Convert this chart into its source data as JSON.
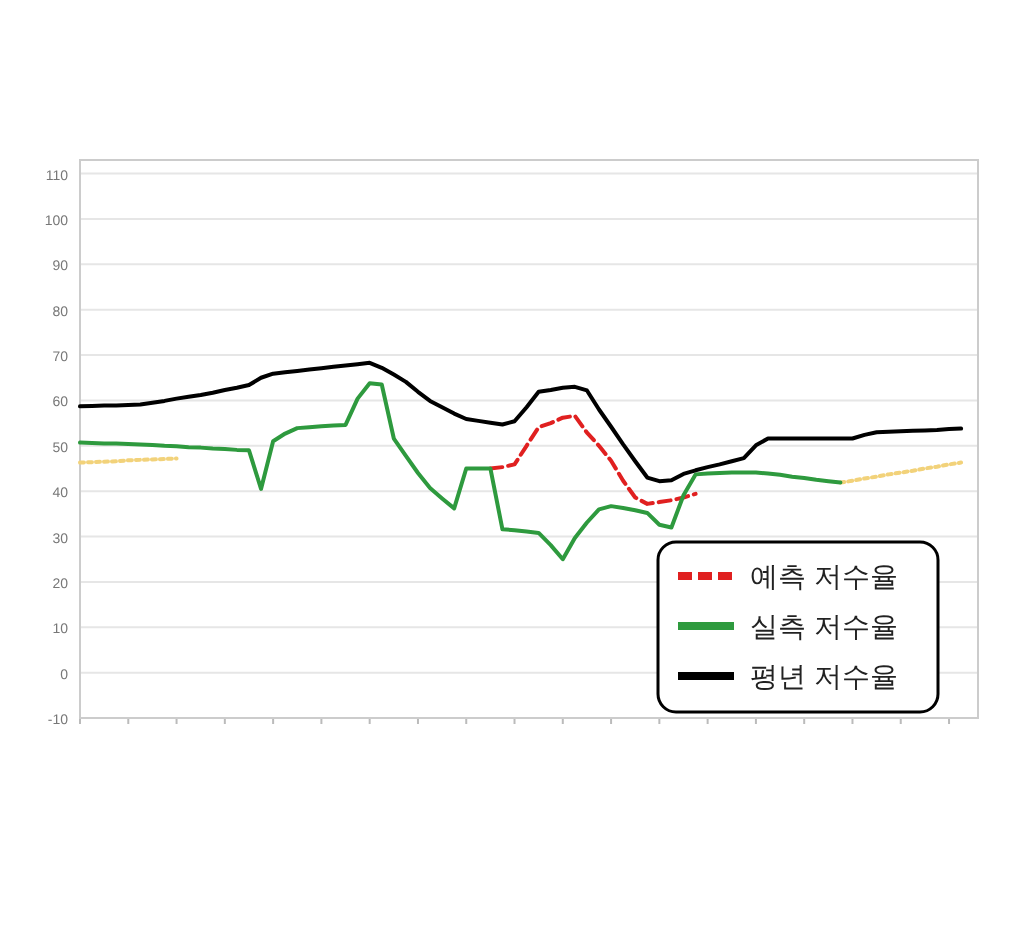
{
  "chart_data": {
    "type": "line",
    "categories": [
      null,
      null,
      null,
      null,
      null,
      null,
      null,
      null,
      null,
      null,
      null,
      null,
      null,
      null,
      null,
      null,
      null,
      null,
      null,
      null,
      null,
      null,
      null,
      null,
      null,
      null,
      null,
      null,
      null,
      null,
      null,
      null,
      null,
      null,
      null,
      null,
      null,
      null,
      null,
      null,
      null,
      null,
      null,
      null,
      null,
      null,
      null,
      null,
      null,
      null,
      null,
      null,
      null,
      null,
      null,
      null,
      null,
      null,
      null,
      null,
      null,
      null,
      null,
      null,
      null,
      null,
      null,
      null,
      null,
      null,
      null,
      null,
      null,
      null,
      null
    ],
    "ylim": [
      -10,
      113
    ],
    "yticks": [
      -10,
      0,
      10,
      20,
      30,
      40,
      50,
      60,
      70,
      80,
      90,
      100,
      110
    ],
    "grid": "y",
    "legend": "bottom right",
    "marker": "none",
    "series": [
      {
        "color": "#f2d27a",
        "line_style": "dotted",
        "values": [
          46.3,
          46.4,
          46.5,
          46.6,
          46.8,
          46.9,
          47.0,
          47.1,
          47.2,
          null,
          null,
          null,
          null,
          null,
          null,
          null,
          null,
          null,
          null,
          null,
          null,
          null,
          null,
          null,
          null,
          null,
          null,
          null,
          null,
          null,
          null,
          null,
          null,
          null,
          null,
          null,
          null,
          null,
          null,
          null,
          null,
          null,
          null,
          null,
          null,
          null,
          null,
          null,
          null,
          null,
          null,
          null,
          null,
          null,
          null,
          null,
          null,
          null,
          null,
          null,
          null,
          null,
          null,
          null,
          null,
          null,
          null,
          null,
          null,
          null,
          null,
          null,
          null,
          null,
          null
        ]
      },
      {
        "color": "#f2d27a",
        "line_style": "dotted",
        "values": [
          null,
          null,
          null,
          null,
          null,
          null,
          null,
          null,
          null,
          null,
          null,
          null,
          null,
          null,
          null,
          null,
          null,
          null,
          null,
          null,
          null,
          null,
          null,
          null,
          null,
          null,
          null,
          null,
          null,
          null,
          null,
          null,
          null,
          null,
          null,
          null,
          null,
          null,
          null,
          null,
          null,
          null,
          null,
          null,
          null,
          null,
          null,
          null,
          null,
          null,
          null,
          null,
          null,
          null,
          null,
          null,
          null,
          null,
          null,
          null,
          null,
          null,
          null,
          41.9,
          42.3,
          42.8,
          43.2,
          43.7,
          44.1,
          44.5,
          45.0,
          45.4,
          45.9,
          46.3,
          null
        ]
      },
      {
        "name": "예측 저수율",
        "color": "#e02020",
        "line_style": "dashed",
        "values": [
          null,
          null,
          null,
          null,
          null,
          null,
          null,
          null,
          null,
          null,
          null,
          null,
          null,
          null,
          null,
          null,
          null,
          null,
          null,
          null,
          null,
          null,
          null,
          null,
          null,
          null,
          null,
          null,
          null,
          null,
          null,
          null,
          null,
          null,
          45.0,
          45.3,
          45.9,
          50.0,
          54.1,
          55.0,
          56.2,
          56.6,
          52.9,
          50.0,
          46.7,
          42.3,
          38.6,
          37.2,
          37.6,
          38.0,
          38.6,
          39.4,
          null,
          null,
          null,
          null,
          null,
          null,
          null,
          null,
          null,
          null,
          null,
          null,
          null,
          null,
          null,
          null,
          null,
          null,
          null,
          null,
          null,
          null,
          null
        ]
      },
      {
        "name": "실측 저수율",
        "color": "#2e9a3e",
        "line_style": "solid",
        "values": [
          50.7,
          50.6,
          50.5,
          50.5,
          50.4,
          50.3,
          50.2,
          50.0,
          49.9,
          49.7,
          49.6,
          49.4,
          49.3,
          49.1,
          49.0,
          40.5,
          51.0,
          52.7,
          53.9,
          54.1,
          54.3,
          54.5,
          54.6,
          60.4,
          63.8,
          63.5,
          51.6,
          47.8,
          44.0,
          40.7,
          38.4,
          36.2,
          45.0,
          45.0,
          45.0,
          31.6,
          31.4,
          31.1,
          30.8,
          28.1,
          25.0,
          29.7,
          33.1,
          36.0,
          36.7,
          36.3,
          35.8,
          35.2,
          32.6,
          32.0,
          39.1,
          43.7,
          43.9,
          44.0,
          44.1,
          44.1,
          44.1,
          43.9,
          43.6,
          43.2,
          42.9,
          42.5,
          42.2,
          41.9,
          null,
          null,
          null,
          null,
          null,
          null,
          null,
          null,
          null,
          null,
          null
        ]
      },
      {
        "name": "평년 저수율",
        "color": "#000000",
        "line_style": "solid",
        "values": [
          58.7,
          58.8,
          58.9,
          58.9,
          59.0,
          59.1,
          59.5,
          59.9,
          60.4,
          60.8,
          61.2,
          61.7,
          62.3,
          62.8,
          63.4,
          65.0,
          65.9,
          66.2,
          66.5,
          66.8,
          67.1,
          67.4,
          67.7,
          68.0,
          68.3,
          67.2,
          65.7,
          64.1,
          61.9,
          59.9,
          58.5,
          57.1,
          55.9,
          55.5,
          55.1,
          54.7,
          55.4,
          58.5,
          61.9,
          62.3,
          62.8,
          63.0,
          62.2,
          58.0,
          54.2,
          50.3,
          46.6,
          43.0,
          42.2,
          42.4,
          43.8,
          44.6,
          45.3,
          45.9,
          46.6,
          47.3,
          50.1,
          51.6,
          51.6,
          51.6,
          51.6,
          51.6,
          51.6,
          51.6,
          51.6,
          52.4,
          53.0,
          53.1,
          53.2,
          53.3,
          53.4,
          53.5,
          53.7,
          53.8,
          null
        ]
      }
    ]
  }
}
